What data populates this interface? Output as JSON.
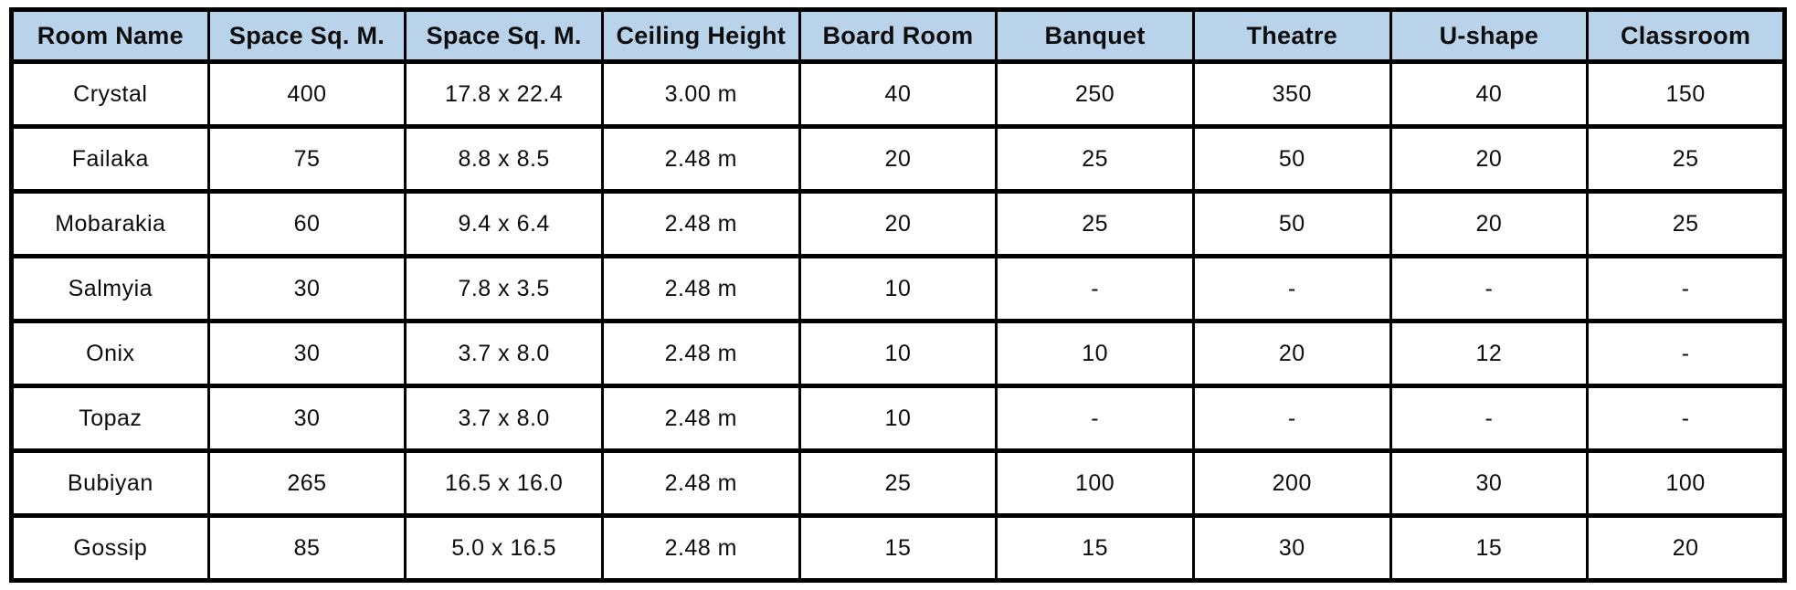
{
  "colors": {
    "header_bg": "#b9d3ea",
    "border": "#000000",
    "text": "#0d0d0d"
  },
  "table": {
    "columns": [
      "Room Name",
      "Space Sq. M.",
      "Space Sq. M.",
      "Ceiling Height",
      "Board Room",
      "Banquet",
      "Theatre",
      "U-shape",
      "Classroom"
    ],
    "rows": [
      [
        "Crystal",
        "400",
        "17.8 x 22.4",
        "3.00 m",
        "40",
        "250",
        "350",
        "40",
        "150"
      ],
      [
        "Failaka",
        "75",
        "8.8 x 8.5",
        "2.48 m",
        "20",
        "25",
        "50",
        "20",
        "25"
      ],
      [
        "Mobarakia",
        "60",
        "9.4 x 6.4",
        "2.48 m",
        "20",
        "25",
        "50",
        "20",
        "25"
      ],
      [
        "Salmyia",
        "30",
        "7.8 x 3.5",
        "2.48 m",
        "10",
        "-",
        "-",
        "-",
        "-"
      ],
      [
        "Onix",
        "30",
        "3.7 x 8.0",
        "2.48 m",
        "10",
        "10",
        "20",
        "12",
        "-"
      ],
      [
        "Topaz",
        "30",
        "3.7 x 8.0",
        "2.48 m",
        "10",
        "-",
        "-",
        "-",
        "-"
      ],
      [
        "Bubiyan",
        "265",
        "16.5 x 16.0",
        "2.48 m",
        "25",
        "100",
        "200",
        "30",
        "100"
      ],
      [
        "Gossip",
        "85",
        "5.0 x 16.5",
        "2.48 m",
        "15",
        "15",
        "30",
        "15",
        "20"
      ]
    ]
  }
}
